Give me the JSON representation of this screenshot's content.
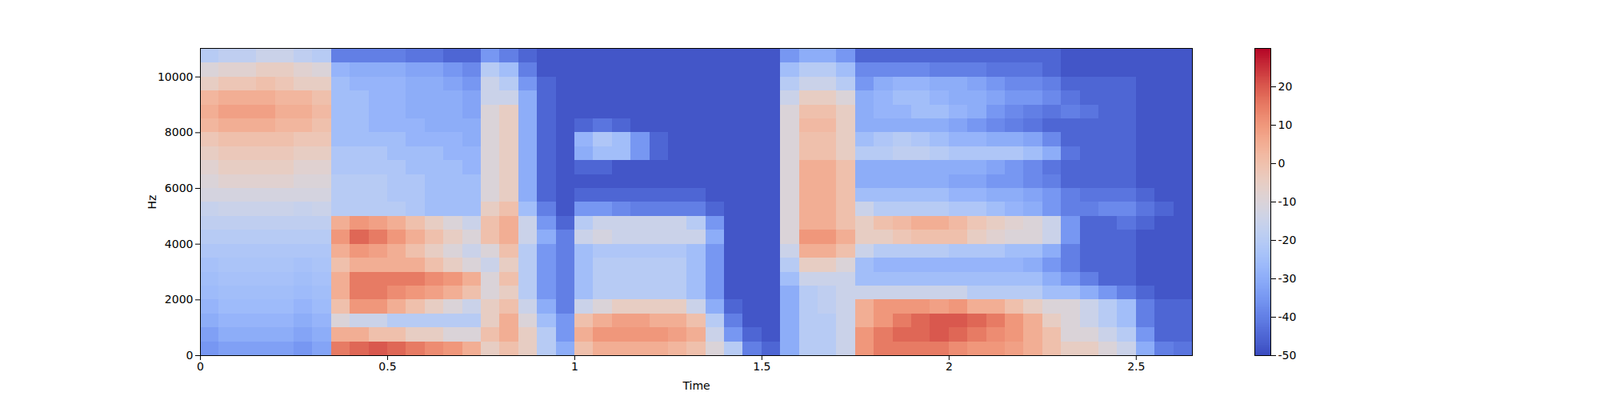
{
  "chart_data": {
    "type": "heatmap",
    "x_label": "Time",
    "y_label": "Hz",
    "xlim": [
      0,
      2.65
    ],
    "xticks": [
      0,
      0.5,
      1,
      1.5,
      2,
      2.5
    ],
    "ylim": [
      0,
      11025
    ],
    "yticks": [
      0,
      2000,
      4000,
      6000,
      8000,
      10000
    ],
    "color": "coolwarm",
    "colorbar": {
      "range": [
        -50,
        30
      ],
      "ticks": [
        -50,
        -40,
        -30,
        -20,
        -10,
        0,
        10,
        20
      ]
    },
    "x_bins": [
      0,
      0.05,
      0.1,
      0.15,
      0.2,
      0.25,
      0.3,
      0.35,
      0.4,
      0.45,
      0.5,
      0.55,
      0.6,
      0.65,
      0.7,
      0.75,
      0.8,
      0.85,
      0.9,
      0.95,
      1,
      1.05,
      1.1,
      1.15,
      1.2,
      1.25,
      1.3,
      1.35,
      1.4,
      1.45,
      1.5,
      1.55,
      1.6,
      1.65,
      1.7,
      1.75,
      1.8,
      1.85,
      1.9,
      1.95,
      2,
      2.05,
      2.1,
      2.15,
      2.2,
      2.25,
      2.3,
      2.35,
      2.4,
      2.45,
      2.5,
      2.55,
      2.6,
      2.65
    ],
    "y_bins": [
      0,
      500,
      1000,
      1500,
      2000,
      2500,
      3000,
      3500,
      4000,
      4500,
      5000,
      5500,
      6000,
      6500,
      7000,
      7500,
      8000,
      8500,
      9000,
      9500,
      10000,
      10500,
      11025
    ],
    "cells": [
      [
        -35,
        -33,
        -33,
        -33,
        -33,
        -35,
        -32,
        15,
        18,
        20,
        18,
        15,
        12,
        10,
        5,
        -5,
        0,
        -5,
        -20,
        -30,
        0,
        5,
        5,
        5,
        5,
        3,
        0,
        -10,
        -20,
        -40,
        -45,
        -30,
        -20,
        -20,
        -15,
        10,
        15,
        15,
        15,
        15,
        12,
        10,
        10,
        8,
        5,
        0,
        -5,
        -5,
        -10,
        -15,
        -30,
        -40,
        -42
      ],
      [
        -33,
        -30,
        -30,
        -30,
        -30,
        -32,
        -30,
        5,
        5,
        0,
        0,
        -5,
        -5,
        -10,
        -10,
        0,
        5,
        -5,
        -20,
        -35,
        5,
        10,
        10,
        10,
        10,
        8,
        5,
        -15,
        -35,
        -45,
        -48,
        -30,
        -20,
        -20,
        -15,
        10,
        15,
        18,
        18,
        20,
        18,
        15,
        12,
        10,
        5,
        0,
        -10,
        -10,
        -15,
        -20,
        -35,
        -45,
        -45
      ],
      [
        -30,
        -28,
        -28,
        -28,
        -28,
        -30,
        -28,
        -10,
        -15,
        -15,
        -20,
        -20,
        -20,
        -20,
        -20,
        -5,
        5,
        -10,
        -25,
        -35,
        0,
        5,
        8,
        8,
        5,
        5,
        0,
        -20,
        -40,
        -48,
        -48,
        -30,
        -20,
        -20,
        -15,
        5,
        10,
        15,
        18,
        20,
        20,
        18,
        15,
        10,
        5,
        -5,
        -10,
        -15,
        -20,
        -25,
        -40,
        -45,
        -45
      ],
      [
        -28,
        -26,
        -26,
        -26,
        -26,
        -28,
        -26,
        0,
        10,
        10,
        5,
        0,
        -5,
        -10,
        -15,
        -5,
        0,
        -15,
        -30,
        -40,
        -15,
        -10,
        -5,
        -5,
        -5,
        -5,
        -15,
        -30,
        -45,
        -48,
        -48,
        -30,
        -20,
        -18,
        -15,
        5,
        10,
        10,
        10,
        8,
        10,
        5,
        5,
        0,
        -5,
        -10,
        -10,
        -15,
        -20,
        -25,
        -40,
        -45,
        -45
      ],
      [
        -26,
        -25,
        -25,
        -25,
        -25,
        -26,
        -25,
        5,
        15,
        15,
        12,
        10,
        8,
        5,
        0,
        -10,
        -5,
        -20,
        -35,
        -40,
        -25,
        -20,
        -20,
        -20,
        -20,
        -20,
        -25,
        -35,
        -48,
        -48,
        -48,
        -30,
        -20,
        -18,
        -15,
        -15,
        -15,
        -15,
        -15,
        -15,
        -15,
        -20,
        -20,
        -20,
        -20,
        -25,
        -25,
        -30,
        -35,
        -40,
        -45,
        -48,
        -48
      ],
      [
        -25,
        -24,
        -24,
        -24,
        -24,
        -25,
        -24,
        5,
        15,
        15,
        15,
        15,
        12,
        10,
        5,
        -10,
        0,
        -20,
        -35,
        -40,
        -25,
        -20,
        -20,
        -20,
        -20,
        -20,
        -25,
        -35,
        -48,
        -48,
        -48,
        -25,
        -15,
        -15,
        -15,
        -25,
        -25,
        -25,
        -25,
        -25,
        -25,
        -25,
        -25,
        -25,
        -25,
        -30,
        -35,
        -40,
        -45,
        -45,
        -48,
        -48,
        -48
      ],
      [
        -24,
        -23,
        -23,
        -23,
        -23,
        -24,
        -23,
        0,
        5,
        5,
        5,
        5,
        0,
        -5,
        -10,
        -15,
        -5,
        -20,
        -35,
        -40,
        -25,
        -20,
        -20,
        -20,
        -20,
        -20,
        -25,
        -35,
        -48,
        -48,
        -48,
        -20,
        -5,
        -5,
        -10,
        -25,
        -28,
        -28,
        -28,
        -28,
        -28,
        -28,
        -28,
        -28,
        -30,
        -35,
        -40,
        -45,
        -45,
        -45,
        -48,
        -48,
        -48
      ],
      [
        -22,
        -22,
        -22,
        -22,
        -22,
        -22,
        -22,
        5,
        10,
        8,
        5,
        0,
        -5,
        -10,
        -15,
        -10,
        0,
        -20,
        -35,
        -40,
        -25,
        -22,
        -22,
        -22,
        -22,
        -22,
        -25,
        -35,
        -48,
        -48,
        -48,
        -15,
        5,
        5,
        0,
        -15,
        -20,
        -20,
        -20,
        -20,
        -22,
        -22,
        -22,
        -25,
        -25,
        -30,
        -40,
        -45,
        -45,
        -45,
        -48,
        -48,
        -48
      ],
      [
        -20,
        -20,
        -20,
        -20,
        -20,
        -20,
        -20,
        10,
        18,
        15,
        10,
        5,
        0,
        -5,
        -10,
        0,
        5,
        -15,
        -30,
        -40,
        -15,
        -12,
        -15,
        -15,
        -15,
        -15,
        -15,
        -30,
        -48,
        -48,
        -48,
        -10,
        10,
        10,
        5,
        -5,
        -5,
        -2,
        0,
        0,
        0,
        -5,
        -8,
        -10,
        -10,
        -15,
        -35,
        -45,
        -45,
        -45,
        -48,
        -48,
        -48
      ],
      [
        -18,
        -18,
        -18,
        -18,
        -18,
        -18,
        -18,
        5,
        10,
        8,
        5,
        0,
        -5,
        -10,
        -15,
        0,
        5,
        -15,
        -35,
        -45,
        -20,
        -15,
        -15,
        -15,
        -15,
        -15,
        -20,
        -35,
        -48,
        -48,
        -48,
        -10,
        5,
        5,
        0,
        -5,
        0,
        2,
        5,
        5,
        2,
        -2,
        -5,
        -8,
        -10,
        -15,
        -35,
        -45,
        -45,
        -42,
        -45,
        -48,
        -48
      ],
      [
        -16,
        -15,
        -15,
        -15,
        -15,
        -16,
        -15,
        -20,
        -20,
        -20,
        -20,
        -22,
        -25,
        -25,
        -25,
        -5,
        0,
        -25,
        -40,
        -48,
        -35,
        -35,
        -38,
        -40,
        -40,
        -40,
        -40,
        -45,
        -48,
        -48,
        -48,
        -10,
        5,
        5,
        0,
        -15,
        -20,
        -20,
        -20,
        -20,
        -22,
        -22,
        -25,
        -28,
        -30,
        -35,
        -40,
        -40,
        -38,
        -38,
        -42,
        -45,
        -48
      ],
      [
        -12,
        -12,
        -12,
        -12,
        -12,
        -12,
        -12,
        -20,
        -20,
        -20,
        -22,
        -22,
        -25,
        -25,
        -25,
        -10,
        -5,
        -30,
        -45,
        -48,
        -45,
        -45,
        -45,
        -45,
        -45,
        -45,
        -45,
        -48,
        -48,
        -48,
        -48,
        -10,
        5,
        5,
        0,
        -25,
        -25,
        -25,
        -25,
        -25,
        -28,
        -28,
        -30,
        -30,
        -32,
        -35,
        -40,
        -42,
        -42,
        -42,
        -45,
        -48,
        -48
      ],
      [
        -10,
        -8,
        -8,
        -8,
        -8,
        -10,
        -10,
        -20,
        -20,
        -20,
        -22,
        -22,
        -25,
        -25,
        -25,
        -10,
        -5,
        -30,
        -45,
        -48,
        -48,
        -48,
        -48,
        -48,
        -48,
        -48,
        -48,
        -48,
        -48,
        -48,
        -48,
        -10,
        5,
        5,
        0,
        -30,
        -30,
        -30,
        -30,
        -30,
        -32,
        -32,
        -35,
        -35,
        -38,
        -40,
        -45,
        -45,
        -45,
        -45,
        -48,
        -48,
        -48
      ],
      [
        -8,
        -5,
        -5,
        -5,
        -5,
        -8,
        -8,
        -22,
        -22,
        -22,
        -22,
        -25,
        -25,
        -25,
        -28,
        -10,
        -5,
        -30,
        -45,
        -48,
        -45,
        -45,
        -48,
        -48,
        -48,
        -48,
        -48,
        -48,
        -48,
        -48,
        -48,
        -10,
        5,
        5,
        0,
        -30,
        -30,
        -30,
        -30,
        -30,
        -30,
        -30,
        -32,
        -35,
        -38,
        -42,
        -45,
        -45,
        -45,
        -45,
        -48,
        -48,
        -48
      ],
      [
        -5,
        -3,
        -3,
        -3,
        -3,
        -5,
        -5,
        -22,
        -22,
        -22,
        -25,
        -25,
        -25,
        -28,
        -28,
        -10,
        -5,
        -30,
        -45,
        -48,
        -30,
        -25,
        -25,
        -35,
        -45,
        -48,
        -48,
        -48,
        -48,
        -48,
        -48,
        -10,
        0,
        0,
        -5,
        -20,
        -20,
        -18,
        -18,
        -20,
        -22,
        -22,
        -22,
        -22,
        -25,
        -30,
        -42,
        -45,
        -45,
        -45,
        -48,
        -48,
        -48
      ],
      [
        -2,
        0,
        0,
        0,
        0,
        -2,
        -2,
        -25,
        -25,
        -25,
        -25,
        -28,
        -28,
        -28,
        -30,
        -10,
        -5,
        -30,
        -45,
        -48,
        -28,
        -22,
        -25,
        -35,
        -45,
        -48,
        -48,
        -48,
        -48,
        -48,
        -48,
        -10,
        0,
        0,
        -5,
        -25,
        -22,
        -20,
        -22,
        -25,
        -28,
        -28,
        -30,
        -30,
        -32,
        -38,
        -45,
        -45,
        -45,
        -45,
        -48,
        -48,
        -48
      ],
      [
        3,
        5,
        5,
        5,
        3,
        3,
        0,
        -25,
        -25,
        -28,
        -28,
        -28,
        -30,
        -30,
        -30,
        -10,
        -5,
        -30,
        -45,
        -48,
        -45,
        -42,
        -45,
        -48,
        -48,
        -48,
        -48,
        -48,
        -48,
        -48,
        -48,
        -10,
        2,
        2,
        -5,
        -30,
        -30,
        -30,
        -30,
        -30,
        -32,
        -35,
        -38,
        -40,
        -42,
        -45,
        -45,
        -45,
        -45,
        -45,
        -48,
        -48,
        -48
      ],
      [
        5,
        8,
        8,
        8,
        5,
        5,
        2,
        -25,
        -25,
        -28,
        -28,
        -30,
        -30,
        -30,
        -32,
        -10,
        -5,
        -30,
        -45,
        -48,
        -48,
        -48,
        -48,
        -48,
        -48,
        -48,
        -48,
        -48,
        -48,
        -48,
        -48,
        -10,
        0,
        0,
        -5,
        -30,
        -28,
        -28,
        -25,
        -25,
        -28,
        -30,
        -35,
        -38,
        -40,
        -42,
        -40,
        -42,
        -45,
        -45,
        -48,
        -48,
        -48
      ],
      [
        3,
        5,
        5,
        5,
        3,
        3,
        0,
        -25,
        -25,
        -28,
        -28,
        -30,
        -30,
        -30,
        -32,
        -15,
        -15,
        -30,
        -45,
        -48,
        -48,
        -48,
        -48,
        -48,
        -48,
        -48,
        -48,
        -48,
        -48,
        -48,
        -48,
        -15,
        -5,
        -5,
        -10,
        -30,
        -28,
        -25,
        -25,
        -28,
        -30,
        -30,
        -32,
        -35,
        -35,
        -38,
        -42,
        -45,
        -45,
        -45,
        -48,
        -48,
        -48
      ],
      [
        -5,
        -2,
        -2,
        0,
        -2,
        -5,
        -5,
        -25,
        -28,
        -28,
        -28,
        -30,
        -30,
        -32,
        -35,
        -15,
        -20,
        -35,
        -45,
        -48,
        -48,
        -48,
        -48,
        -48,
        -48,
        -48,
        -48,
        -48,
        -48,
        -48,
        -48,
        -20,
        -15,
        -15,
        -20,
        -35,
        -30,
        -28,
        -28,
        -30,
        -30,
        -32,
        -35,
        -38,
        -38,
        -40,
        -45,
        -45,
        -45,
        -45,
        -48,
        -48,
        -48
      ],
      [
        -10,
        -8,
        -8,
        -5,
        -5,
        -8,
        -10,
        -28,
        -30,
        -30,
        -30,
        -32,
        -32,
        -35,
        -38,
        -20,
        -25,
        -40,
        -48,
        -48,
        -48,
        -48,
        -48,
        -48,
        -48,
        -48,
        -48,
        -48,
        -48,
        -48,
        -48,
        -25,
        -20,
        -20,
        -25,
        -38,
        -38,
        -38,
        -38,
        -40,
        -40,
        -40,
        -42,
        -42,
        -42,
        -45,
        -48,
        -48,
        -48,
        -48,
        -48,
        -48,
        -48
      ],
      [
        -20,
        -18,
        -18,
        -15,
        -15,
        -18,
        -20,
        -40,
        -40,
        -40,
        -40,
        -42,
        -42,
        -45,
        -45,
        -35,
        -40,
        -45,
        -48,
        -48,
        -48,
        -48,
        -48,
        -48,
        -48,
        -48,
        -48,
        -48,
        -48,
        -48,
        -48,
        -35,
        -30,
        -30,
        -35,
        -45,
        -45,
        -45,
        -45,
        -45,
        -45,
        -45,
        -45,
        -45,
        -45,
        -45,
        -48,
        -48,
        -48,
        -48,
        -48,
        -48,
        -48
      ]
    ]
  }
}
